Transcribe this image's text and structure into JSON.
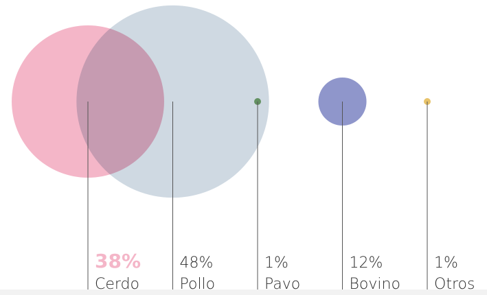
{
  "chart_data": {
    "type": "bubble",
    "categories": [
      "Cerdo",
      "Pollo",
      "Pavo",
      "Bovino",
      "Otros"
    ],
    "values": [
      38,
      48,
      1,
      12,
      1
    ],
    "value_labels": [
      "38%",
      "48%",
      "1%",
      "12%",
      "1%"
    ],
    "colors": [
      "#f4b6c8",
      "#cfd9e2",
      "#7aab6e",
      "#8f96cb",
      "#e8c36a"
    ],
    "highlight": "Cerdo"
  }
}
